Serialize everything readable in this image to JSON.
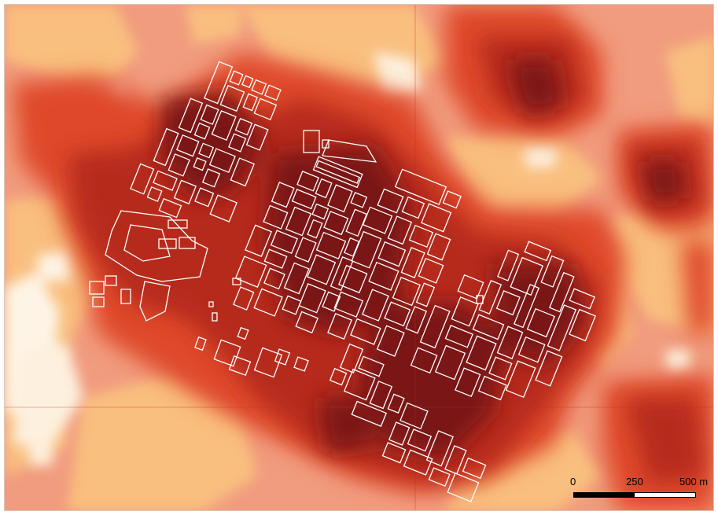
{
  "map": {
    "legend_colors": {
      "lowest": "#fef4e6",
      "low": "#f9bf7f",
      "medium_low": "#f19c7e",
      "medium": "#df4a2c",
      "medium_high": "#b6291c",
      "highest": "#7a1616"
    },
    "building_outline_color": "#ffffff"
  },
  "scale_bar": {
    "label_start": "0",
    "label_mid": "250",
    "label_end": "500 m"
  }
}
